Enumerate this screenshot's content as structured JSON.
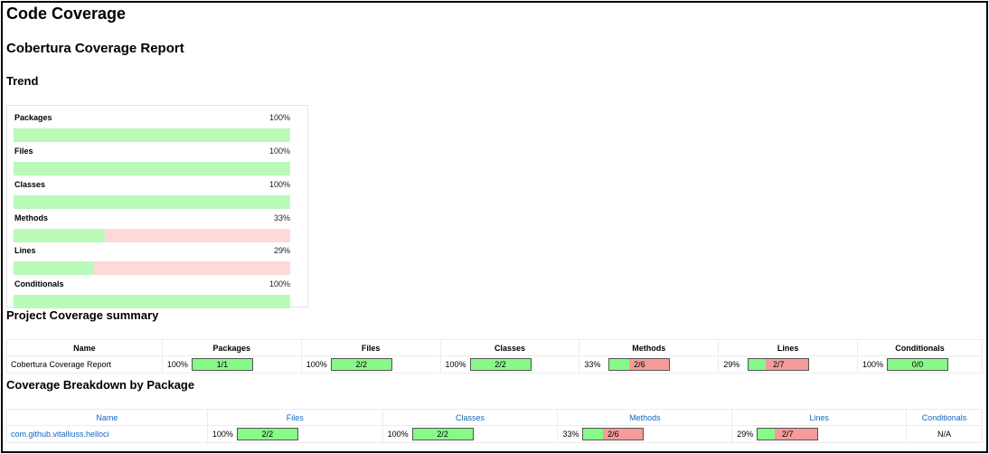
{
  "page": {
    "title": "Code Coverage",
    "report_title": "Cobertura Coverage Report",
    "trend_title": "Trend",
    "summary_title": "Project Coverage summary",
    "breakdown_title": "Coverage Breakdown by Package"
  },
  "trend": [
    {
      "label": "Packages",
      "percent_text": "100%",
      "fraction": 1.0
    },
    {
      "label": "Files",
      "percent_text": "100%",
      "fraction": 1.0
    },
    {
      "label": "Classes",
      "percent_text": "100%",
      "fraction": 1.0
    },
    {
      "label": "Methods",
      "percent_text": "33%",
      "fraction": 0.33
    },
    {
      "label": "Lines",
      "percent_text": "29%",
      "fraction": 0.29
    },
    {
      "label": "Conditionals",
      "percent_text": "100%",
      "fraction": 1.0
    }
  ],
  "summary": {
    "headers": [
      "Name",
      "Packages",
      "Files",
      "Classes",
      "Methods",
      "Lines",
      "Conditionals"
    ],
    "row": {
      "name": "Cobertura Coverage Report",
      "cells": [
        {
          "pct": "100%",
          "ratio": "1/1",
          "fraction": 1.0
        },
        {
          "pct": "100%",
          "ratio": "2/2",
          "fraction": 1.0
        },
        {
          "pct": "100%",
          "ratio": "2/2",
          "fraction": 1.0
        },
        {
          "pct": "33%",
          "ratio": "2/6",
          "fraction": 0.33
        },
        {
          "pct": "29%",
          "ratio": "2/7",
          "fraction": 0.29
        },
        {
          "pct": "100%",
          "ratio": "0/0",
          "fraction": 1.0
        }
      ]
    }
  },
  "breakdown": {
    "headers": [
      "Name",
      "Files",
      "Classes",
      "Methods",
      "Lines",
      "Conditionals"
    ],
    "row": {
      "name": "com.github.vitalliuss.helloci",
      "cells": [
        {
          "pct": "100%",
          "ratio": "2/2",
          "fraction": 1.0
        },
        {
          "pct": "100%",
          "ratio": "2/2",
          "fraction": 1.0
        },
        {
          "pct": "33%",
          "ratio": "2/6",
          "fraction": 0.33
        },
        {
          "pct": "29%",
          "ratio": "2/7",
          "fraction": 0.29
        }
      ],
      "conditionals": "N/A"
    }
  },
  "colors": {
    "trend_covered": "#b9fab9",
    "trend_uncovered": "#ffd9d9",
    "bar_covered": "#86fa86",
    "bar_uncovered": "#f79a9a",
    "link": "#1565c0"
  }
}
